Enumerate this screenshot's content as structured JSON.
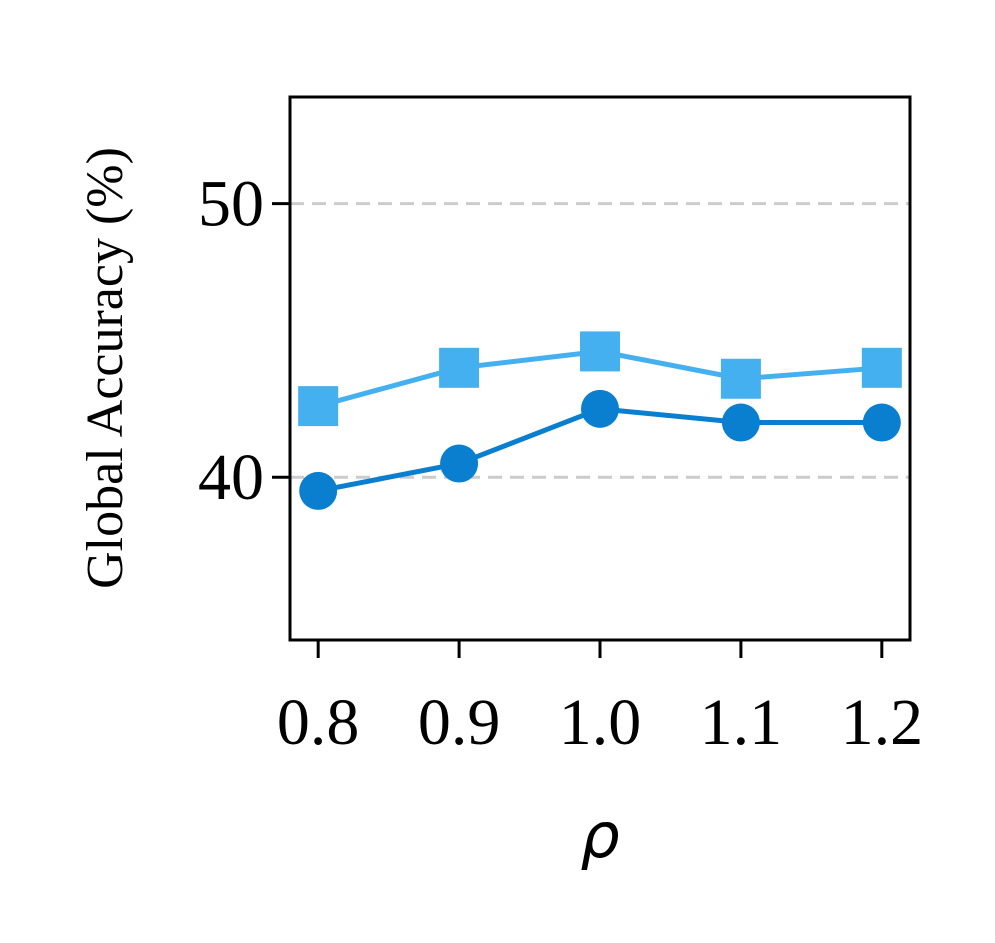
{
  "chart_data": {
    "type": "line",
    "title": "",
    "xlabel": "ρ",
    "ylabel": "Global Accuracy (%)",
    "x": [
      0.8,
      0.9,
      1.0,
      1.1,
      1.2
    ],
    "x_tick_labels": [
      "0.8",
      "0.9",
      "1.0",
      "1.1",
      "1.2"
    ],
    "y_ticks": [
      40,
      50
    ],
    "y_tick_labels": [
      "40",
      "50"
    ],
    "xlim": [
      0.78,
      1.22
    ],
    "ylim": [
      34.05,
      53.9
    ],
    "grid": "horizontal dashed",
    "series": [
      {
        "marker": "square",
        "color": "#45b0f0",
        "values": [
          42.6,
          44.0,
          44.6,
          43.6,
          44.0
        ]
      },
      {
        "marker": "circle",
        "color": "#0a7fd0",
        "values": [
          39.5,
          40.5,
          42.5,
          42.0,
          42.0
        ]
      }
    ]
  }
}
